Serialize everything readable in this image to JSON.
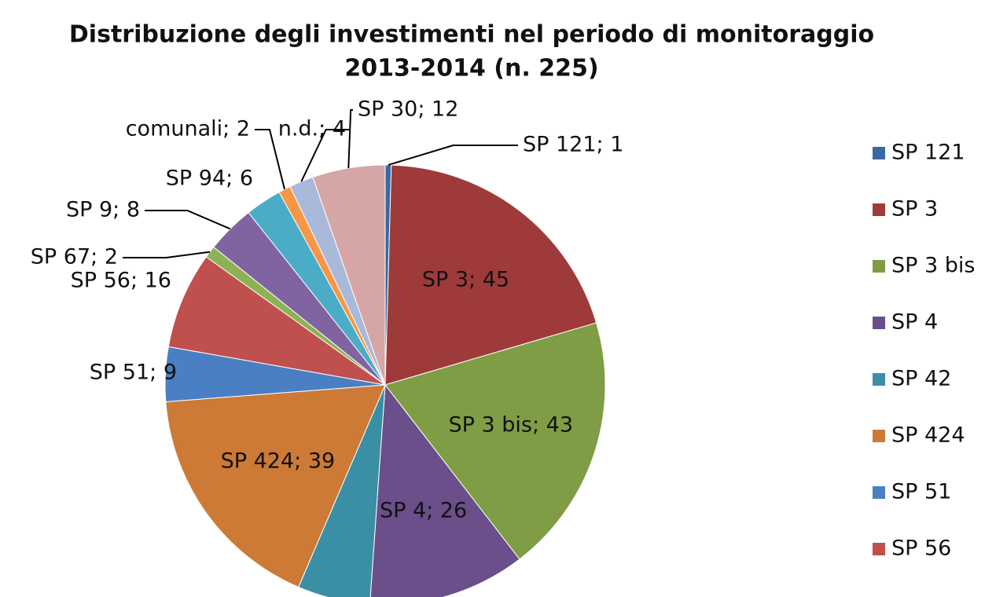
{
  "chart_data": {
    "type": "pie",
    "title": "Distribuzione degli investimenti nel periodo di monitoraggio",
    "subtitle": "2013-2014  (n. 225)",
    "categories": [
      "SP 121",
      "SP 3",
      "SP 3 bis",
      "SP 4",
      "SP 42",
      "SP 424",
      "SP 51",
      "SP 56",
      "SP 67",
      "SP 9",
      "SP 94",
      "comunali",
      "n.d.",
      "SP 30"
    ],
    "values": [
      1,
      45,
      43,
      26,
      12,
      39,
      9,
      16,
      2,
      8,
      6,
      2,
      4,
      12
    ],
    "value_labels": [
      "SP 121; 1",
      "SP 3; 45",
      "SP 3 bis; 43",
      "SP 4; 26",
      null,
      "SP 424; 39",
      "SP 51; 9",
      "SP 56; 16",
      "SP 67; 2",
      "SP 9; 8",
      "SP 94; 6",
      "comunali; 2",
      "n.d.; 4",
      "SP 30; 12"
    ],
    "colors": [
      "#3b68a3",
      "#9e3b3a",
      "#7f9d45",
      "#6a4f8a",
      "#3a8fa5",
      "#cc7a35",
      "#4a7fc3",
      "#c0504d",
      "#8db255",
      "#8064a2",
      "#4bacc6",
      "#f79646",
      "#a9b9d9",
      "#d6a6a7"
    ],
    "legend": "right"
  }
}
